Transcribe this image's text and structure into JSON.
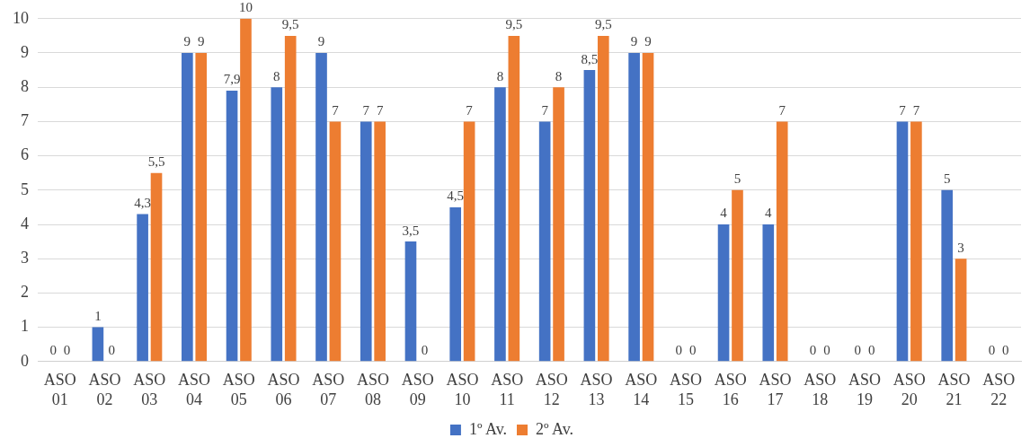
{
  "chart_data": {
    "type": "bar",
    "categories": [
      "ASO 01",
      "ASO 02",
      "ASO 03",
      "ASO 04",
      "ASO 05",
      "ASO 06",
      "ASO 07",
      "ASO 08",
      "ASO 09",
      "ASO 10",
      "ASO 11",
      "ASO 12",
      "ASO 13",
      "ASO 14",
      "ASO 15",
      "ASO 16",
      "ASO 17",
      "ASO 18",
      "ASO 19",
      "ASO 20",
      "ASO 21",
      "ASO 22"
    ],
    "series": [
      {
        "name": "1º Av.",
        "color": "#4472c4",
        "values": [
          0,
          1,
          4.3,
          9,
          7.9,
          8,
          9,
          7,
          3.5,
          4.5,
          8,
          7,
          8.5,
          9,
          0,
          4,
          4,
          0,
          0,
          7,
          5,
          0
        ],
        "value_labels": [
          "0",
          "1",
          "4,3",
          "9",
          "7,9",
          "8",
          "9",
          "7",
          "3,5",
          "4,5",
          "8",
          "7",
          "8,5",
          "9",
          "0",
          "4",
          "4",
          "0",
          "0",
          "7",
          "5",
          "0"
        ]
      },
      {
        "name": "2º Av.",
        "color": "#ed7d31",
        "values": [
          0,
          0,
          5.5,
          9,
          10,
          9.5,
          7,
          7,
          0,
          7,
          9.5,
          8,
          9.5,
          9,
          0,
          5,
          7,
          0,
          0,
          7,
          3,
          0
        ],
        "value_labels": [
          "0",
          "0",
          "5,5",
          "9",
          "10",
          "9,5",
          "7",
          "7",
          "0",
          "7",
          "9,5",
          "8",
          "9,5",
          "9",
          "0",
          "5",
          "7",
          "0",
          "0",
          "7",
          "3",
          "0"
        ]
      }
    ],
    "ylim": [
      0,
      10
    ],
    "yticks": [
      0,
      1,
      2,
      3,
      4,
      5,
      6,
      7,
      8,
      9,
      10
    ],
    "grid": "y",
    "legend": "bottom"
  }
}
